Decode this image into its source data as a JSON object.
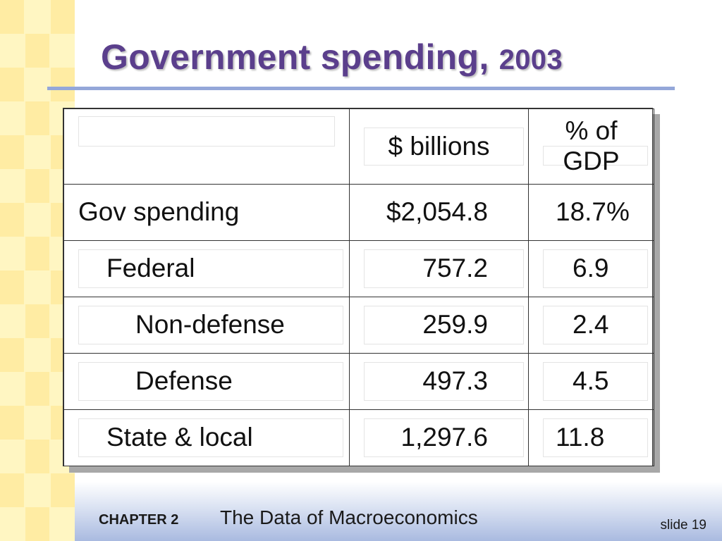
{
  "slide": {
    "title_main": "Government spending,",
    "title_year": "2003"
  },
  "table": {
    "headers": [
      "",
      "$ billions",
      "% of GDP"
    ],
    "header_pct_line1": "% of",
    "header_pct_line2": "GDP",
    "rows": [
      {
        "label": "Gov spending",
        "billions": "$2,054.8",
        "pct": "18.7%"
      },
      {
        "label": "Federal",
        "billions": "757.2",
        "pct": "6.9"
      },
      {
        "label": "Non-defense",
        "billions": "259.9",
        "pct": "2.4"
      },
      {
        "label": "Defense",
        "billions": "497.3",
        "pct": "4.5"
      },
      {
        "label": "State & local",
        "billions": "1,297.6",
        "pct": "11.8"
      }
    ]
  },
  "footer": {
    "chapter": "CHAPTER 2",
    "book_title": "The Data of Macroeconomics",
    "slide_number": "slide 19"
  },
  "colors": {
    "title": "#5B3F8C",
    "rule": "#94A7D9",
    "strip_light": "#FFF6C2",
    "strip_dark": "#FFE38A"
  }
}
